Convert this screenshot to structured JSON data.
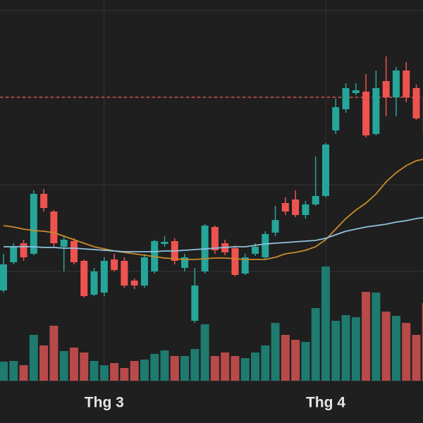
{
  "chart_data": {
    "type": "candlestick",
    "up_color": "#26a69a",
    "down_color": "#ef5350",
    "volume_up_color": "#1f7a70",
    "volume_down_color": "#b84a4a",
    "open": [
      188,
      228,
      255,
      240,
      325,
      300,
      250,
      258,
      230,
      182,
      185,
      232,
      230,
      202,
      195,
      215,
      254,
      258,
      220,
      145,
      215,
      278,
      255,
      248,
      212,
      240,
      235,
      270,
      312,
      317,
      295,
      310,
      322,
      415,
      445,
      468,
      470,
      410,
      485,
      462,
      500,
      475,
      460
    ],
    "high": [
      240,
      255,
      260,
      330,
      332,
      302,
      265,
      262,
      232,
      220,
      235,
      240,
      235,
      205,
      240,
      260,
      265,
      262,
      240,
      220,
      282,
      280,
      260,
      252,
      240,
      255,
      272,
      308,
      320,
      330,
      315,
      378,
      397,
      460,
      482,
      482,
      495,
      500,
      520,
      505,
      512,
      480,
      465
    ],
    "low": [
      185,
      225,
      230,
      238,
      300,
      250,
      215,
      225,
      178,
      180,
      180,
      215,
      192,
      190,
      192,
      212,
      250,
      225,
      215,
      142,
      212,
      240,
      238,
      208,
      210,
      237,
      232,
      265,
      295,
      292,
      290,
      308,
      320,
      410,
      440,
      465,
      405,
      408,
      435,
      435,
      455,
      430,
      395
    ],
    "close": [
      225,
      250,
      235,
      325,
      305,
      255,
      260,
      228,
      180,
      215,
      230,
      217,
      195,
      195,
      235,
      258,
      257,
      230,
      235,
      195,
      280,
      245,
      242,
      210,
      235,
      250,
      268,
      288,
      300,
      295,
      310,
      322,
      395,
      448,
      475,
      472,
      408,
      475,
      462,
      500,
      462,
      432,
      410
    ],
    "volume": [
      27,
      28,
      22,
      65,
      50,
      78,
      42,
      47,
      40,
      28,
      22,
      25,
      18,
      28,
      30,
      38,
      43,
      35,
      35,
      45,
      80,
      35,
      40,
      35,
      32,
      40,
      50,
      82,
      65,
      58,
      55,
      103,
      162,
      85,
      93,
      90,
      126,
      125,
      98,
      92,
      82,
      65,
      110
    ],
    "moving_averages": [
      {
        "color": "#c98b2b",
        "values": [
          280,
          278,
          275,
          273,
          272,
          270,
          265,
          260,
          255,
          250,
          247,
          244,
          242,
          240,
          238,
          236,
          234,
          233,
          232,
          232,
          233,
          234,
          234,
          233,
          232,
          232,
          232,
          235,
          240,
          242,
          245,
          250,
          260,
          275,
          290,
          302,
          312,
          325,
          342,
          355,
          365,
          372,
          375
        ]
      },
      {
        "color": "#8fc3e0",
        "values": [
          250,
          250,
          250,
          250,
          249,
          249,
          248,
          248,
          247,
          246,
          245,
          244,
          243,
          243,
          243,
          243,
          244,
          244,
          245,
          246,
          247,
          248,
          249,
          250,
          250,
          252,
          254,
          255,
          256,
          257,
          258,
          259,
          262,
          267,
          272,
          275,
          278,
          280,
          282,
          285,
          287,
          290,
          292
        ]
      }
    ],
    "reference_line": {
      "value": 462,
      "color": "#e0504a"
    },
    "ylim": [
      60,
      600
    ],
    "yticks": [
      215,
      338,
      462,
      585
    ],
    "grid": true,
    "x_labels": [
      {
        "index": 10,
        "label": "Thg 3"
      },
      {
        "index": 32,
        "label": "Thg 4"
      }
    ]
  }
}
